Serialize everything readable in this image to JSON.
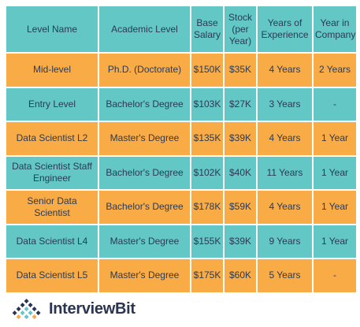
{
  "table": {
    "headers": [
      "Level Name",
      "Academic Level",
      "Base Salary",
      "Stock (per Year)",
      "Years of Experience",
      "Year in Company"
    ],
    "rows": [
      {
        "level": "Mid-level",
        "academic": "Ph.D. (Doctorate)",
        "base": "$150K",
        "stock": "$35K",
        "experience": "4 Years",
        "company": "2 Years",
        "color": "orange"
      },
      {
        "level": "Entry Level",
        "academic": "Bachelor's Degree",
        "base": "$103K",
        "stock": "$27K",
        "experience": "3 Years",
        "company": "-",
        "color": "teal"
      },
      {
        "level": "Data Scientist L2",
        "academic": "Master's Degree",
        "base": "$135K",
        "stock": "$39K",
        "experience": "4 Years",
        "company": "1 Year",
        "color": "orange"
      },
      {
        "level": "Data Scientist Staff Engineer",
        "academic": "Bachelor's Degree",
        "base": "$102K",
        "stock": "$40K",
        "experience": "11 Years",
        "company": "1 Year",
        "color": "teal"
      },
      {
        "level": "Senior Data Scientist",
        "academic": "Bachelor's Degree",
        "base": "$178K",
        "stock": "$59K",
        "experience": "4 Years",
        "company": "1 Year",
        "color": "orange"
      },
      {
        "level": "Data Scientist L4",
        "academic": "Master's Degree",
        "base": "$155K",
        "stock": "$39K",
        "experience": "9 Years",
        "company": "1 Year",
        "color": "teal"
      },
      {
        "level": "Data Scientist L5",
        "academic": "Master's Degree",
        "base": "$175K",
        "stock": "$60K",
        "experience": "5 Years",
        "company": "-",
        "color": "orange"
      }
    ]
  },
  "colors": {
    "teal": "#63c7c5",
    "orange": "#f9ab45",
    "text": "#2b3a55"
  },
  "logo": {
    "text": "InterviewBit",
    "icon": "interviewbit-logo-icon"
  }
}
